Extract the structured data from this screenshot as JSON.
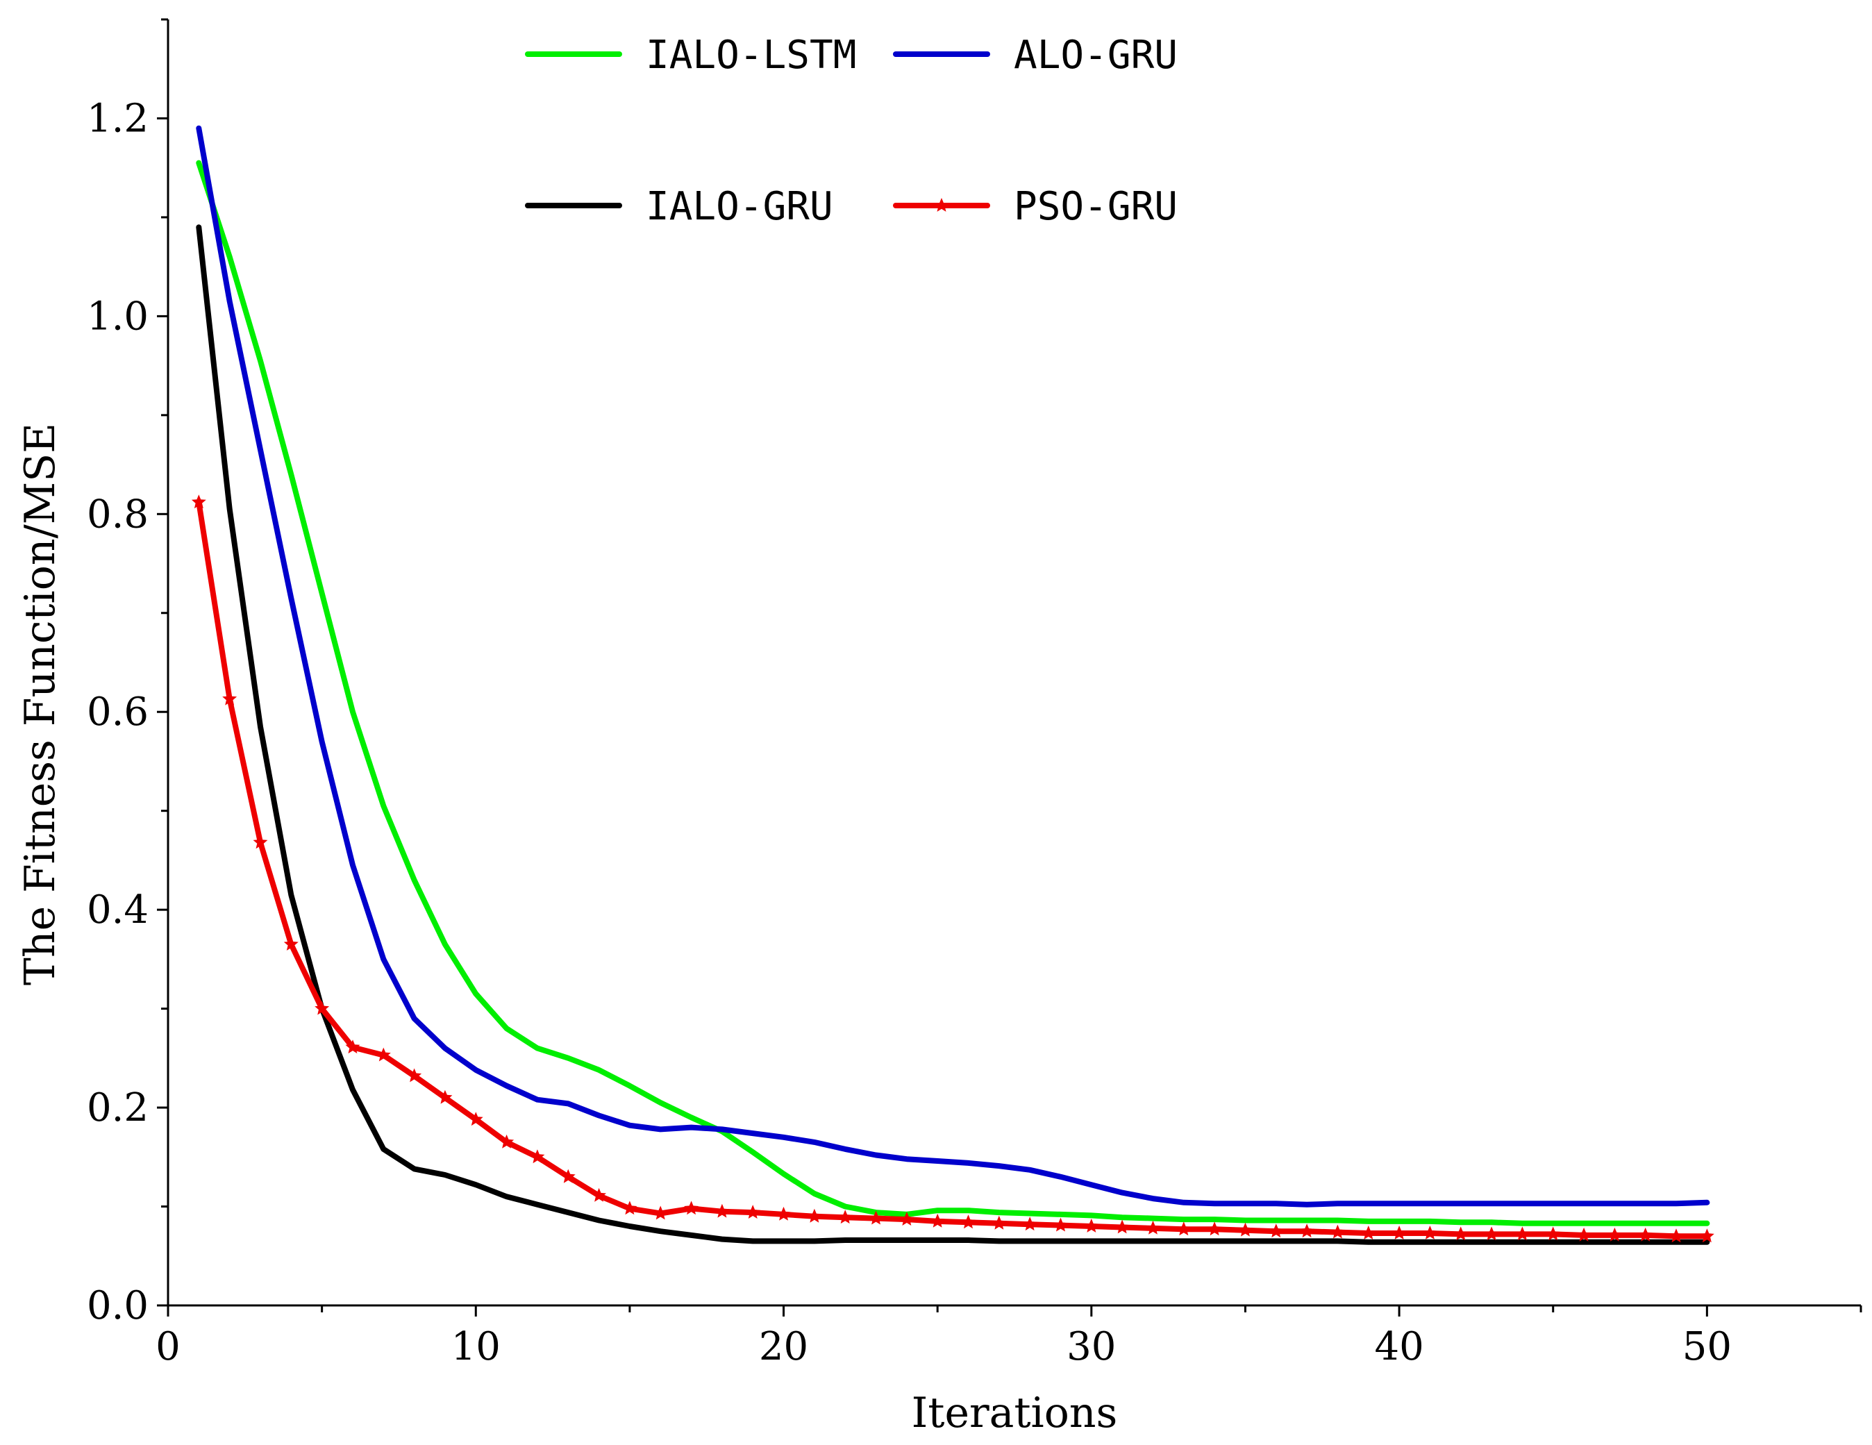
{
  "chart_data": {
    "type": "line",
    "xlabel": "Iterations",
    "ylabel": "The Fitness Function/MSE",
    "xlim": [
      0,
      55
    ],
    "ylim": [
      0,
      1.3
    ],
    "xticks": [
      0,
      10,
      20,
      30,
      40,
      50
    ],
    "xtick_labels": [
      "0",
      "10",
      "20",
      "30",
      "40",
      "50"
    ],
    "yticks": [
      0,
      0.2,
      0.4,
      0.6,
      0.8,
      1.0,
      1.2
    ],
    "ytick_labels": [
      "0.0",
      "0.2",
      "0.4",
      "0.6",
      "0.8",
      "1.0",
      "1.2"
    ],
    "legend_position": "top",
    "grid": false,
    "x": [
      1,
      2,
      3,
      4,
      5,
      6,
      7,
      8,
      9,
      10,
      11,
      12,
      13,
      14,
      15,
      16,
      17,
      18,
      19,
      20,
      21,
      22,
      23,
      24,
      25,
      26,
      27,
      28,
      29,
      30,
      31,
      32,
      33,
      34,
      35,
      36,
      37,
      38,
      39,
      40,
      41,
      42,
      43,
      44,
      45,
      46,
      47,
      48,
      49,
      50
    ],
    "series": [
      {
        "name": "IALO-LSTM",
        "color": "#00ee00",
        "marker": "none",
        "values": [
          1.155,
          1.06,
          0.955,
          0.84,
          0.72,
          0.6,
          0.505,
          0.43,
          0.365,
          0.315,
          0.28,
          0.26,
          0.25,
          0.238,
          0.222,
          0.205,
          0.19,
          0.176,
          0.155,
          0.133,
          0.113,
          0.1,
          0.094,
          0.092,
          0.096,
          0.096,
          0.094,
          0.093,
          0.092,
          0.091,
          0.089,
          0.088,
          0.087,
          0.087,
          0.086,
          0.086,
          0.086,
          0.086,
          0.085,
          0.085,
          0.085,
          0.084,
          0.084,
          0.083,
          0.083,
          0.083,
          0.083,
          0.083,
          0.083,
          0.083
        ]
      },
      {
        "name": "ALO-GRU",
        "color": "#0000cc",
        "marker": "none",
        "values": [
          1.19,
          1.015,
          0.865,
          0.715,
          0.57,
          0.445,
          0.35,
          0.29,
          0.26,
          0.238,
          0.222,
          0.208,
          0.204,
          0.192,
          0.182,
          0.178,
          0.18,
          0.178,
          0.174,
          0.17,
          0.165,
          0.158,
          0.152,
          0.148,
          0.146,
          0.144,
          0.141,
          0.137,
          0.13,
          0.122,
          0.114,
          0.108,
          0.104,
          0.103,
          0.103,
          0.103,
          0.102,
          0.103,
          0.103,
          0.103,
          0.103,
          0.103,
          0.103,
          0.103,
          0.103,
          0.103,
          0.103,
          0.103,
          0.103,
          0.104
        ]
      },
      {
        "name": "IALO-GRU",
        "color": "#000000",
        "marker": "none",
        "values": [
          1.09,
          0.805,
          0.585,
          0.415,
          0.3,
          0.218,
          0.158,
          0.138,
          0.132,
          0.122,
          0.11,
          0.102,
          0.094,
          0.086,
          0.08,
          0.075,
          0.071,
          0.067,
          0.065,
          0.065,
          0.065,
          0.066,
          0.066,
          0.066,
          0.066,
          0.066,
          0.065,
          0.065,
          0.065,
          0.065,
          0.065,
          0.065,
          0.065,
          0.065,
          0.065,
          0.065,
          0.065,
          0.065,
          0.064,
          0.064,
          0.064,
          0.064,
          0.064,
          0.064,
          0.064,
          0.064,
          0.064,
          0.064,
          0.064,
          0.064
        ]
      },
      {
        "name": "PSO-GRU",
        "color": "#ee0000",
        "marker": "star",
        "values": [
          0.812,
          0.613,
          0.468,
          0.365,
          0.3,
          0.261,
          0.253,
          0.232,
          0.21,
          0.188,
          0.165,
          0.15,
          0.13,
          0.111,
          0.098,
          0.093,
          0.098,
          0.095,
          0.094,
          0.092,
          0.09,
          0.089,
          0.088,
          0.087,
          0.085,
          0.084,
          0.083,
          0.082,
          0.081,
          0.08,
          0.079,
          0.078,
          0.077,
          0.077,
          0.076,
          0.075,
          0.075,
          0.074,
          0.073,
          0.073,
          0.073,
          0.072,
          0.072,
          0.072,
          0.072,
          0.071,
          0.071,
          0.071,
          0.07,
          0.07
        ]
      }
    ]
  }
}
